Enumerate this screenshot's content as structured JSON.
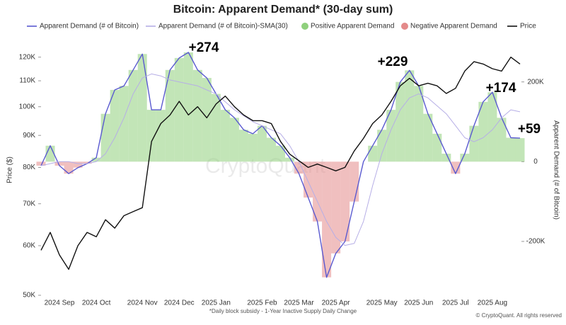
{
  "chart_data": {
    "type": "dual-axis-line",
    "title": "Bitcoin: Apparent Demand* (30-day sum)",
    "footnote": "*Daily block subsidy - 1-Year Inactive Supply Daily Change",
    "copyright": "© CryptoQuant. All rights reserved",
    "watermark": "CryptoQuant",
    "ylabel": "Price ($)",
    "y2label": "Apparent Demand (# of Bitcoin)",
    "log_y": true,
    "ylim": [
      50000,
      125000
    ],
    "yticks": [
      {
        "value": 50000,
        "label": "50K"
      },
      {
        "value": 60000,
        "label": "60K"
      },
      {
        "value": 70000,
        "label": "70K"
      },
      {
        "value": 80000,
        "label": "80K"
      },
      {
        "value": 90000,
        "label": "90K"
      },
      {
        "value": 100000,
        "label": "100K"
      },
      {
        "value": 110000,
        "label": "110K"
      },
      {
        "value": 120000,
        "label": "120K"
      }
    ],
    "y2lim": [
      -335000,
      290000
    ],
    "y2ticks": [
      {
        "value": -200000,
        "label": "-200K"
      },
      0,
      {
        "value": 200000,
        "label": "200K"
      }
    ],
    "categories": [
      null,
      null,
      "2024 Sep",
      null,
      null,
      null,
      "2024 Oct",
      null,
      null,
      null,
      null,
      "2024 Nov",
      null,
      null,
      null,
      "2024 Dec",
      null,
      null,
      null,
      "2025 Jan",
      null,
      null,
      null,
      null,
      "2025 Feb",
      null,
      null,
      null,
      "2025 Mar",
      null,
      null,
      null,
      "2025 Apr",
      null,
      null,
      null,
      null,
      "2025 May",
      null,
      null,
      null,
      "2025 Jun",
      null,
      null,
      null,
      "2025 Jul",
      null,
      null,
      null,
      "2025 Aug",
      null,
      null,
      null
    ],
    "series": [
      {
        "name": "Apparent Demand (# of Bitcoin)",
        "color": "#5a5ad0",
        "axis": "y2",
        "fill_by_sign": true,
        "values": [
          -10000,
          40000,
          -10000,
          -30000,
          -15000,
          -5000,
          10000,
          120000,
          180000,
          190000,
          230000,
          270000,
          130000,
          130000,
          230000,
          260000,
          274000,
          230000,
          210000,
          170000,
          130000,
          110000,
          80000,
          70000,
          90000,
          60000,
          40000,
          10000,
          -30000,
          -90000,
          -150000,
          -290000,
          -230000,
          -200000,
          -100000,
          0,
          40000,
          80000,
          130000,
          200000,
          229000,
          190000,
          120000,
          70000,
          20000,
          -30000,
          20000,
          90000,
          150000,
          174000,
          110000,
          60000,
          59000
        ]
      },
      {
        "name": "Apparent Demand (# of Bitcoin)-SMA(30)",
        "color": "#b6aee6",
        "axis": "y2",
        "values": [
          -10000,
          -5000,
          0,
          0,
          -5000,
          -5000,
          0,
          20000,
          60000,
          110000,
          170000,
          210000,
          220000,
          215000,
          205000,
          200000,
          195000,
          190000,
          180000,
          170000,
          150000,
          130000,
          115000,
          100000,
          90000,
          80000,
          70000,
          40000,
          0,
          -50000,
          -100000,
          -150000,
          -190000,
          -210000,
          -205000,
          -150000,
          -60000,
          20000,
          80000,
          130000,
          160000,
          170000,
          160000,
          140000,
          120000,
          90000,
          60000,
          50000,
          60000,
          80000,
          110000,
          130000,
          125000
        ]
      },
      {
        "name": "Price",
        "color": "#111111",
        "axis": "y",
        "values": [
          59000,
          63000,
          58000,
          55000,
          60000,
          63000,
          62000,
          66000,
          64000,
          67000,
          68000,
          69000,
          88000,
          94000,
          97000,
          102000,
          97000,
          100000,
          96000,
          101000,
          104000,
          100000,
          97000,
          95000,
          95000,
          94000,
          88000,
          84000,
          82000,
          80000,
          81000,
          80000,
          79000,
          80000,
          85000,
          89000,
          94000,
          97000,
          102000,
          108000,
          111000,
          108000,
          109000,
          108000,
          105000,
          107000,
          114000,
          118000,
          117000,
          115000,
          114000,
          120000,
          117000
        ]
      }
    ],
    "fills": [
      {
        "name": "Positive Apparent Demand",
        "color": "#8fd07c"
      },
      {
        "name": "Negative Apparent Demand",
        "color": "#e48a8a"
      }
    ],
    "annotations": [
      "+274",
      "+229",
      "+174",
      "+59"
    ]
  }
}
